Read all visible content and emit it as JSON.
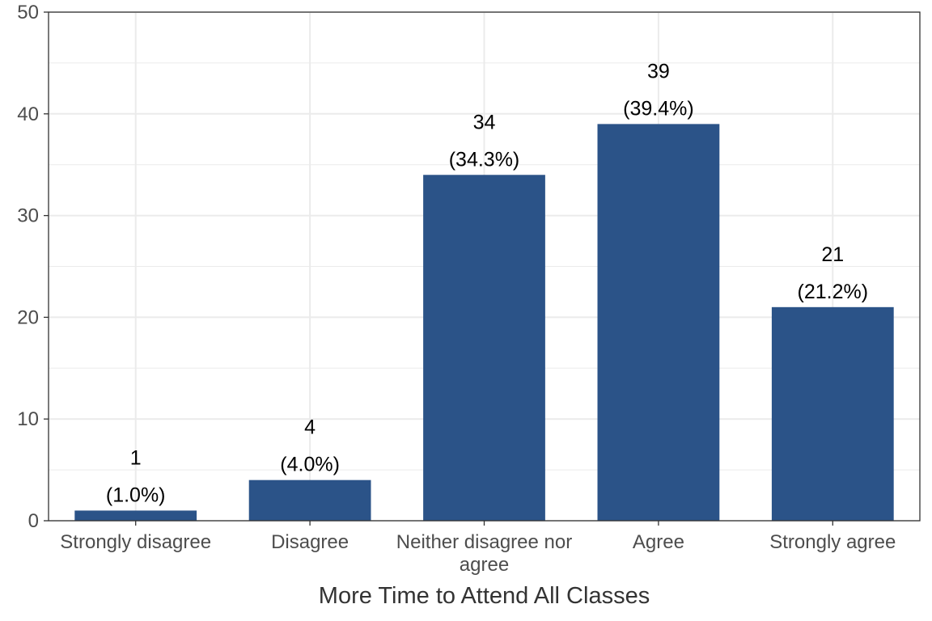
{
  "chart_data": {
    "type": "bar",
    "title": "",
    "xlabel": "More Time to Attend All Classes",
    "ylabel": "",
    "categories": [
      "Strongly disagree",
      "Disagree",
      "Neither disagree nor agree",
      "Agree",
      "Strongly agree"
    ],
    "category_lines": [
      [
        "Strongly disagree"
      ],
      [
        "Disagree"
      ],
      [
        "Neither disagree nor",
        "agree"
      ],
      [
        "Agree"
      ],
      [
        "Strongly agree"
      ]
    ],
    "values": [
      1,
      4,
      34,
      39,
      21
    ],
    "percent_labels": [
      "(1.0%)",
      "(4.0%)",
      "(34.3%)",
      "(39.4%)",
      "(21.2%)"
    ],
    "ylim": [
      0,
      50
    ],
    "yticks": [
      0,
      10,
      20,
      30,
      40,
      50
    ],
    "grid": true,
    "legend": "none",
    "bar_color": "#2b5388"
  }
}
